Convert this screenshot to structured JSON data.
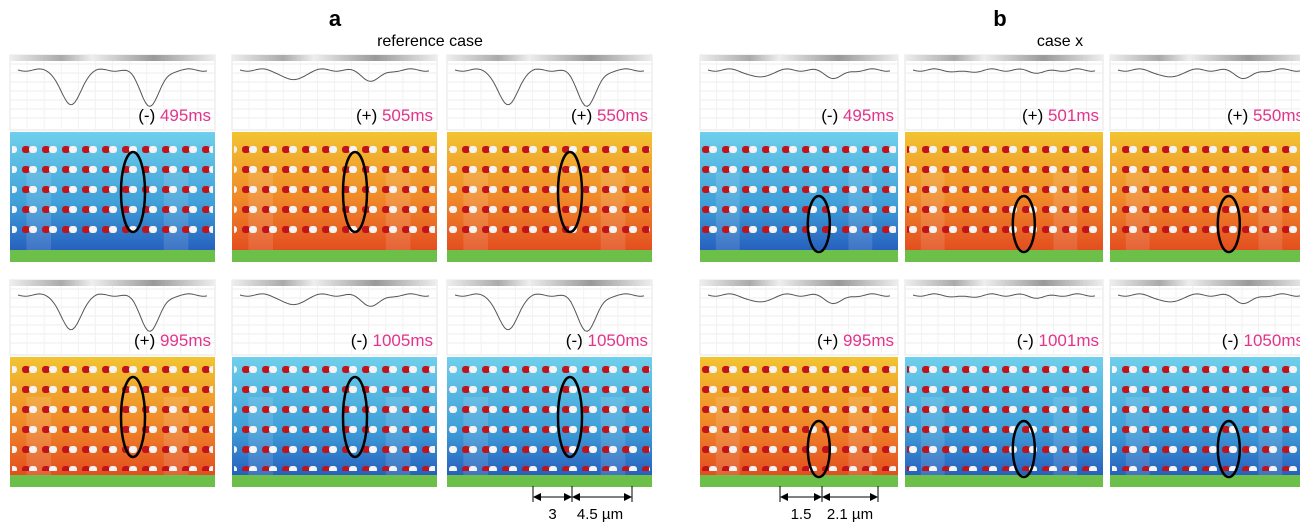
{
  "panels": [
    {
      "letter": "a",
      "title": "reference case",
      "frames": [
        {
          "sign": "(-)",
          "time": "495ms"
        },
        {
          "sign": "(+)",
          "time": "505ms"
        },
        {
          "sign": "(+)",
          "time": "550ms"
        },
        {
          "sign": "(+)",
          "time": "995ms"
        },
        {
          "sign": "(-)",
          "time": "1005ms"
        },
        {
          "sign": "(-)",
          "time": "1050ms"
        }
      ],
      "dims": [
        "3",
        "4.5 µm"
      ]
    },
    {
      "letter": "b",
      "title": "case x",
      "frames": [
        {
          "sign": "(-)",
          "time": "495ms"
        },
        {
          "sign": "(+)",
          "time": "501ms"
        },
        {
          "sign": "(+)",
          "time": "550ms"
        },
        {
          "sign": "(+)",
          "time": "995ms"
        },
        {
          "sign": "(-)",
          "time": "1001ms"
        },
        {
          "sign": "(-)",
          "time": "1050ms"
        }
      ],
      "dims": [
        "1.5",
        "2.1 µm"
      ]
    }
  ]
}
